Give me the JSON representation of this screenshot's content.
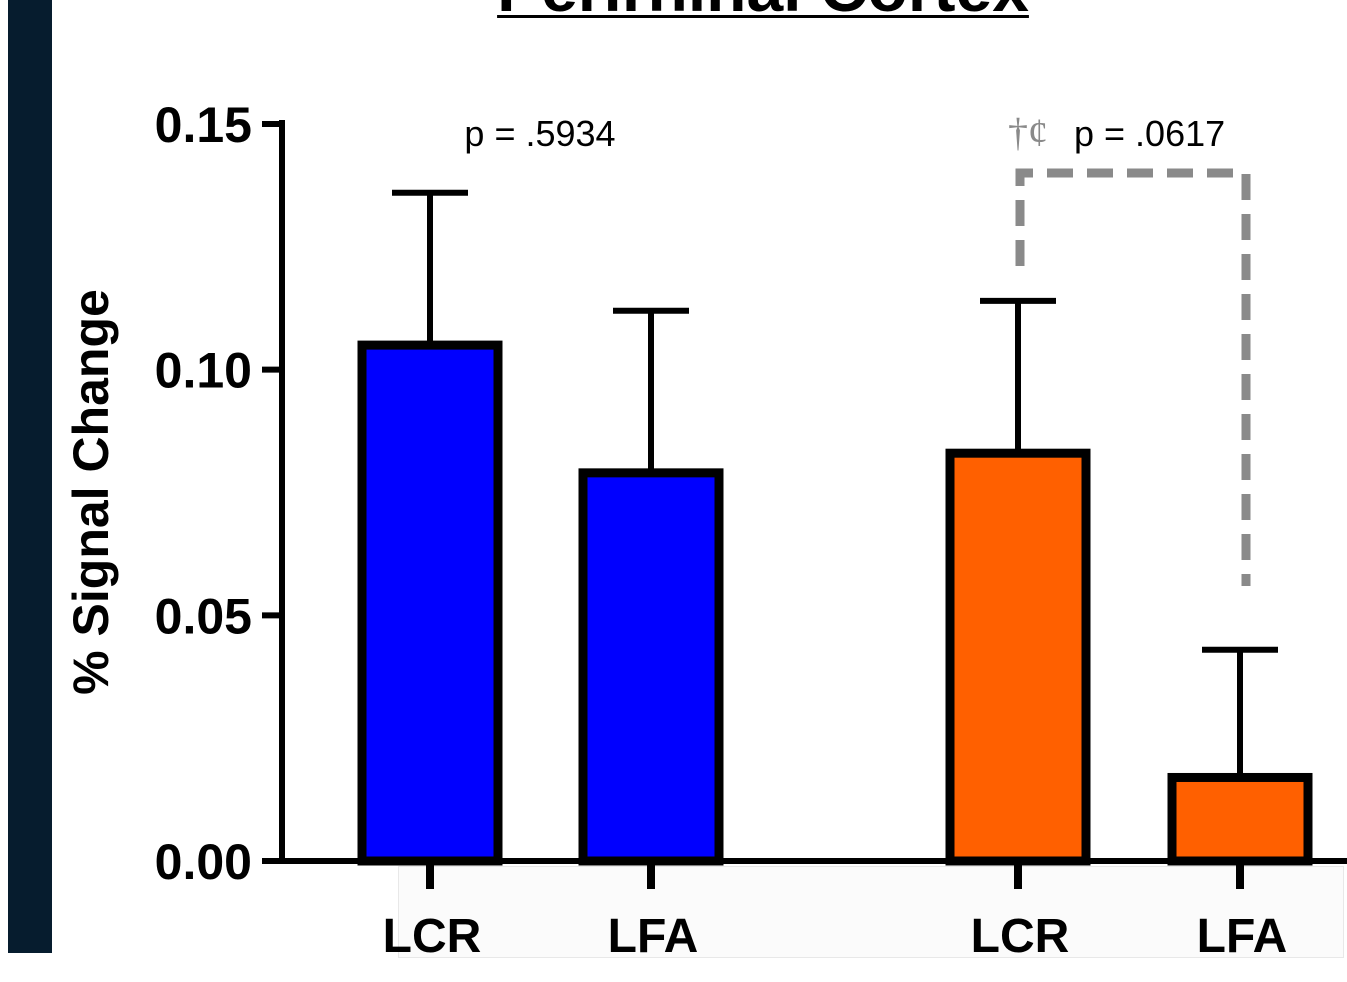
{
  "title": "Perirhinal Cortex",
  "chart_data": {
    "type": "bar",
    "title": "Perirhinal Cortex",
    "ylabel": "% Signal Change",
    "xlabel": "",
    "ylim": [
      0,
      0.15
    ],
    "y_ticks": [
      "0.00",
      "0.05",
      "0.10",
      "0.15"
    ],
    "grid": false,
    "bars": [
      {
        "group": 1,
        "category": "LCR",
        "value": 0.105,
        "error": 0.031,
        "color": "#0000ff"
      },
      {
        "group": 1,
        "category": "LFA",
        "value": 0.079,
        "error": 0.033,
        "color": "#0000ff"
      },
      {
        "group": 2,
        "category": "LCR",
        "value": 0.083,
        "error": 0.031,
        "color": "#ff6000"
      },
      {
        "group": 2,
        "category": "LFA",
        "value": 0.017,
        "error": 0.026,
        "color": "#ff6000"
      }
    ],
    "annotations": [
      {
        "group": 1,
        "text": "p = .5934"
      },
      {
        "group": 2,
        "symbols": "†¢",
        "text": "p = .0617",
        "bracket": "dashed"
      }
    ]
  }
}
